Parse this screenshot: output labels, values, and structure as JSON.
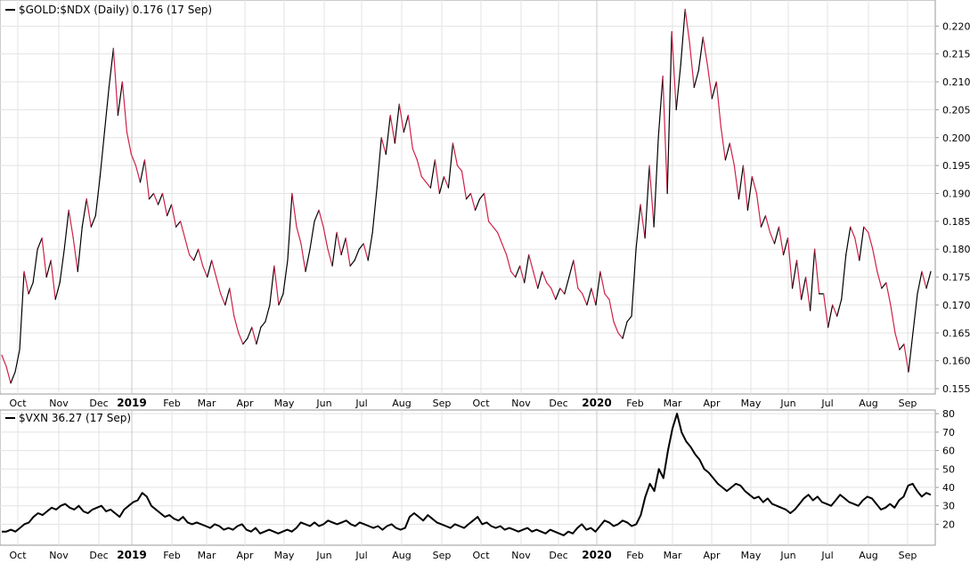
{
  "chart_data": [
    {
      "type": "line",
      "title": "$GOLD:$NDX (Daily) 0.176 (17 Sep)",
      "ylim": [
        0.155,
        0.223
      ],
      "yticks": [
        0.155,
        0.16,
        0.165,
        0.17,
        0.175,
        0.18,
        0.185,
        0.19,
        0.195,
        0.2,
        0.205,
        0.21,
        0.215,
        0.22
      ],
      "ytick_labels": [
        "0.155",
        "0.160",
        "0.165",
        "0.170",
        "0.175",
        "0.180",
        "0.185",
        "0.190",
        "0.195",
        "0.200",
        "0.205",
        "0.210",
        "0.215",
        "0.220"
      ],
      "grid": true,
      "up_color": "#000000",
      "down_color": "#d0204a",
      "x_labels": [
        "Oct",
        "Nov",
        "Dec",
        "2019",
        "Feb",
        "Mar",
        "Apr",
        "May",
        "Jun",
        "Jul",
        "Aug",
        "Sep",
        "Oct",
        "Nov",
        "Dec",
        "2020",
        "Feb",
        "Mar",
        "Apr",
        "May",
        "Jun",
        "Jul",
        "Aug",
        "Sep"
      ],
      "series": [
        {
          "values": [
            0.161,
            0.159,
            0.156,
            0.158,
            0.162,
            0.176,
            0.172,
            0.174,
            0.18,
            0.182,
            0.175,
            0.178,
            0.171,
            0.174,
            0.18,
            0.187,
            0.182,
            0.176,
            0.184,
            0.189,
            0.184,
            0.186,
            0.193,
            0.201,
            0.209,
            0.216,
            0.204,
            0.21,
            0.201,
            0.197,
            0.195,
            0.192,
            0.196,
            0.189,
            0.19,
            0.188,
            0.19,
            0.186,
            0.188,
            0.184,
            0.185,
            0.182,
            0.179,
            0.178,
            0.18,
            0.177,
            0.175,
            0.178,
            0.175,
            0.172,
            0.17,
            0.173,
            0.168,
            0.165,
            0.163,
            0.164,
            0.166,
            0.163,
            0.166,
            0.167,
            0.17,
            0.177,
            0.17,
            0.172,
            0.178,
            0.19,
            0.184,
            0.181,
            0.176,
            0.18,
            0.185,
            0.187,
            0.184,
            0.18,
            0.177,
            0.183,
            0.179,
            0.182,
            0.177,
            0.178,
            0.18,
            0.181,
            0.178,
            0.183,
            0.191,
            0.2,
            0.197,
            0.204,
            0.199,
            0.206,
            0.201,
            0.204,
            0.198,
            0.196,
            0.193,
            0.192,
            0.191,
            0.196,
            0.19,
            0.193,
            0.191,
            0.199,
            0.195,
            0.194,
            0.189,
            0.19,
            0.187,
            0.189,
            0.19,
            0.185,
            0.184,
            0.183,
            0.181,
            0.179,
            0.176,
            0.175,
            0.177,
            0.174,
            0.179,
            0.176,
            0.173,
            0.176,
            0.174,
            0.173,
            0.171,
            0.173,
            0.172,
            0.175,
            0.178,
            0.173,
            0.172,
            0.17,
            0.173,
            0.17,
            0.176,
            0.172,
            0.171,
            0.167,
            0.165,
            0.164,
            0.167,
            0.168,
            0.18,
            0.188,
            0.182,
            0.195,
            0.184,
            0.2,
            0.211,
            0.19,
            0.219,
            0.205,
            0.213,
            0.223,
            0.217,
            0.209,
            0.212,
            0.218,
            0.213,
            0.207,
            0.21,
            0.202,
            0.196,
            0.199,
            0.195,
            0.189,
            0.195,
            0.187,
            0.193,
            0.19,
            0.184,
            0.186,
            0.183,
            0.181,
            0.184,
            0.179,
            0.182,
            0.173,
            0.178,
            0.171,
            0.175,
            0.169,
            0.18,
            0.172,
            0.172,
            0.166,
            0.17,
            0.168,
            0.171,
            0.179,
            0.184,
            0.182,
            0.178,
            0.184,
            0.183,
            0.18,
            0.176,
            0.173,
            0.174,
            0.17,
            0.165,
            0.162,
            0.163,
            0.158,
            0.165,
            0.172,
            0.176,
            0.173,
            0.176
          ]
        }
      ]
    },
    {
      "type": "line",
      "title": "$VXN 36.27 (17 Sep)",
      "ylim": [
        12,
        82
      ],
      "yticks": [
        20,
        30,
        40,
        50,
        60,
        70,
        80
      ],
      "ytick_labels": [
        "20",
        "30",
        "40",
        "50",
        "60",
        "70",
        "80"
      ],
      "grid": true,
      "line_color": "#000000",
      "x_labels": [
        "Oct",
        "Nov",
        "Dec",
        "2019",
        "Feb",
        "Mar",
        "Apr",
        "May",
        "Jun",
        "Jul",
        "Aug",
        "Sep",
        "Oct",
        "Nov",
        "Dec",
        "2020",
        "Feb",
        "Mar",
        "Apr",
        "May",
        "Jun",
        "Jul",
        "Aug",
        "Sep"
      ],
      "series": [
        {
          "values": [
            16,
            16,
            17,
            16,
            18,
            20,
            21,
            24,
            26,
            25,
            27,
            29,
            28,
            30,
            31,
            29,
            28,
            30,
            27,
            26,
            28,
            29,
            30,
            27,
            28,
            26,
            24,
            28,
            30,
            32,
            33,
            37,
            35,
            30,
            28,
            26,
            24,
            25,
            23,
            22,
            24,
            21,
            20,
            21,
            20,
            19,
            18,
            20,
            19,
            17,
            18,
            17,
            19,
            20,
            17,
            16,
            18,
            15,
            16,
            17,
            16,
            15,
            16,
            17,
            16,
            18,
            21,
            20,
            19,
            21,
            19,
            20,
            22,
            21,
            20,
            21,
            22,
            20,
            19,
            21,
            20,
            19,
            18,
            19,
            17,
            19,
            20,
            18,
            17,
            18,
            24,
            26,
            24,
            22,
            25,
            23,
            21,
            20,
            19,
            18,
            20,
            19,
            18,
            20,
            22,
            24,
            20,
            21,
            19,
            18,
            19,
            17,
            18,
            17,
            16,
            17,
            18,
            16,
            17,
            16,
            15,
            17,
            16,
            15,
            14,
            16,
            15,
            18,
            20,
            17,
            18,
            16,
            19,
            22,
            21,
            19,
            20,
            22,
            21,
            19,
            20,
            25,
            35,
            42,
            38,
            50,
            45,
            60,
            72,
            80,
            70,
            65,
            62,
            58,
            55,
            50,
            48,
            45,
            42,
            40,
            38,
            40,
            42,
            41,
            38,
            36,
            34,
            35,
            32,
            34,
            31,
            30,
            29,
            28,
            26,
            28,
            31,
            34,
            36,
            33,
            35,
            32,
            31,
            30,
            33,
            36,
            34,
            32,
            31,
            30,
            33,
            35,
            34,
            31,
            28,
            29,
            31,
            29,
            33,
            35,
            41,
            42,
            38,
            35,
            37,
            36
          ]
        }
      ]
    }
  ]
}
